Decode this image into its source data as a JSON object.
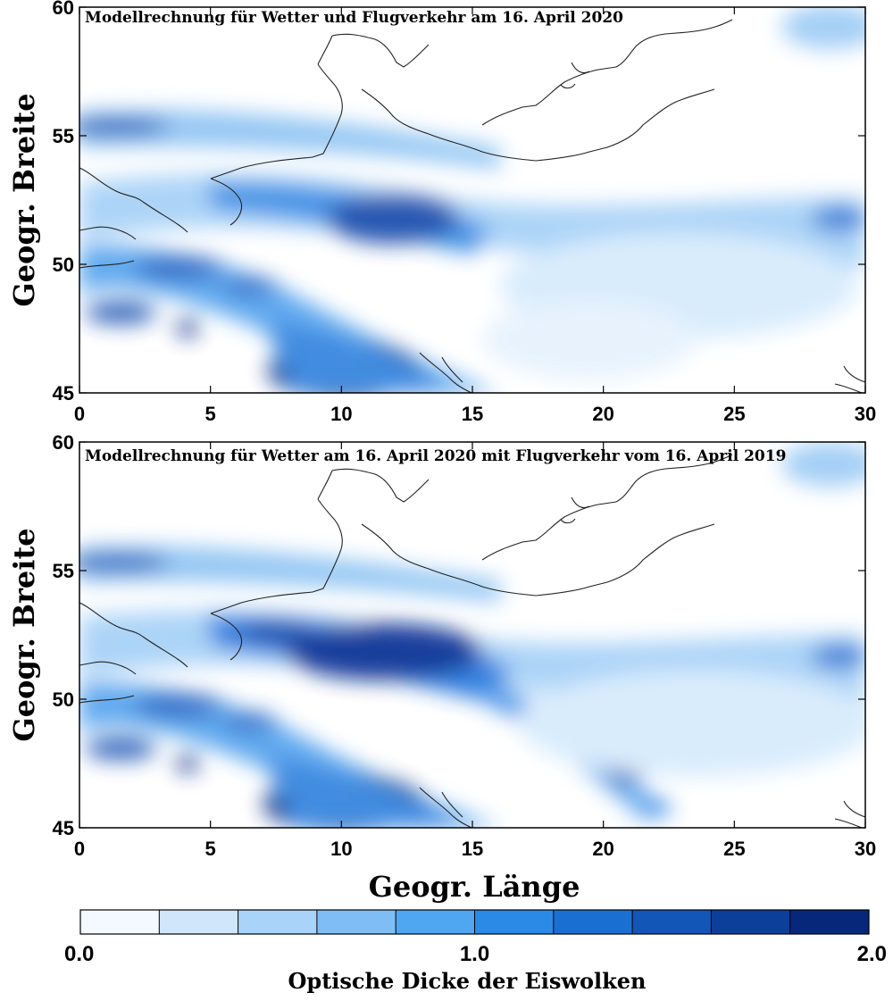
{
  "maps": [
    {
      "title": "Modellrechnung für Wetter und Flugverkehr am 16. April 2020",
      "scenario": "2020"
    },
    {
      "title": "Modellrechnung für Wetter am 16. April 2020 mit Flugverkehr vom 16. April 2019",
      "scenario": "2019"
    }
  ],
  "axes": {
    "xlabel": "Geogr. Länge",
    "ylabel": "Geogr. Breite",
    "xlim": [
      0,
      30
    ],
    "ylim": [
      45,
      60
    ],
    "xticks": [
      "0",
      "5",
      "10",
      "15",
      "20",
      "25",
      "30"
    ],
    "yticks": [
      "45",
      "50",
      "55",
      "60"
    ]
  },
  "colorbar": {
    "label": "Optische Dicke der Eiswolken",
    "tick_labels": [
      "0.0",
      "1.0",
      "2.0"
    ],
    "range": [
      0.0,
      2.0
    ],
    "segments": 10,
    "colors": [
      "#f3f9ff",
      "#cfe6fb",
      "#a9d3f8",
      "#7fbef5",
      "#4fa6f1",
      "#2a8ae6",
      "#1a6fd2",
      "#1256b8",
      "#0b3f9a",
      "#07287a"
    ]
  }
}
